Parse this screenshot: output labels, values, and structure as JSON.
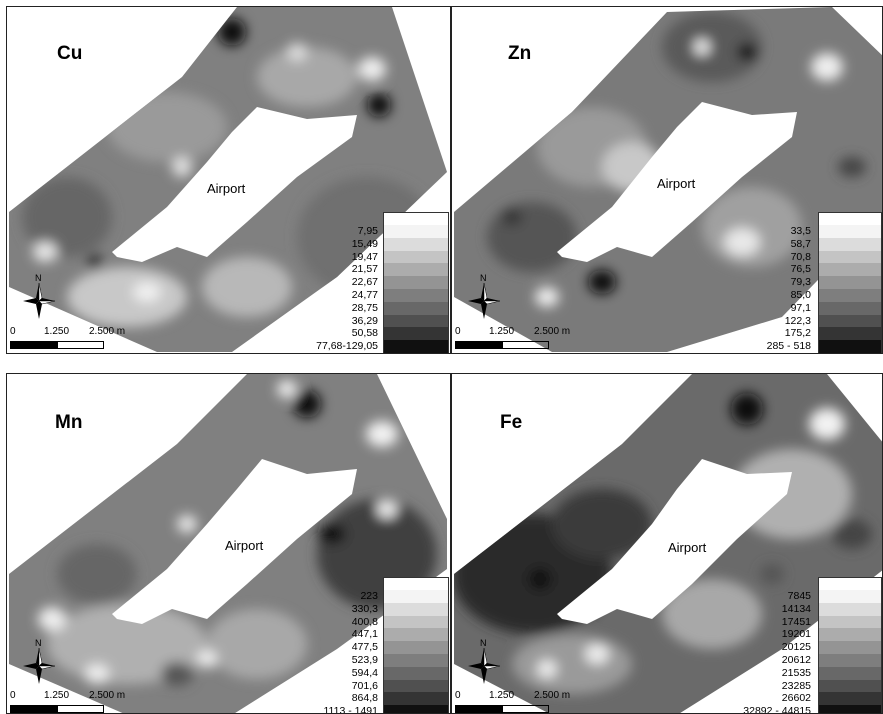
{
  "panels": [
    {
      "title": "Cu",
      "airport_label": "Airport",
      "legend": [
        "7,95",
        "15,49",
        "19,47",
        "21,57",
        "22,67",
        "24,77",
        "28,75",
        "36,29",
        "50,58",
        "77,68-129,05"
      ],
      "scale": {
        "zero": "0",
        "mid": "1.250",
        "end": "2.500 m"
      },
      "compass_letter": "N"
    },
    {
      "title": "Zn",
      "airport_label": "Airport",
      "legend": [
        "33,5",
        "58,7",
        "70,8",
        "76,5",
        "79,3",
        "85,0",
        "97,1",
        "122,3",
        "175,2",
        "285 - 518"
      ],
      "scale": {
        "zero": "0",
        "mid": "1.250",
        "end": "2.500 m"
      },
      "compass_letter": "N"
    },
    {
      "title": "Mn",
      "airport_label": "Airport",
      "legend": [
        "223",
        "330,3",
        "400,8",
        "447,1",
        "477,5",
        "523,9",
        "594,4",
        "701,6",
        "864,8",
        "1113 - 1491"
      ],
      "scale": {
        "zero": "0",
        "mid": "1.250",
        "end": "2.500 m"
      },
      "compass_letter": "N"
    },
    {
      "title": "Fe",
      "airport_label": "Airport",
      "legend": [
        "7845",
        "14134",
        "17451",
        "19201",
        "20125",
        "20612",
        "21535",
        "23285",
        "26602",
        "32892 - 44815"
      ],
      "scale": {
        "zero": "0",
        "mid": "1.250",
        "end": "2.500 m"
      },
      "compass_letter": "N"
    }
  ],
  "legend_colors": [
    "#f4f4f4",
    "#dcdcdc",
    "#c4c4c4",
    "#acacac",
    "#949494",
    "#7e7e7e",
    "#686868",
    "#505050",
    "#343434",
    "#101010"
  ]
}
